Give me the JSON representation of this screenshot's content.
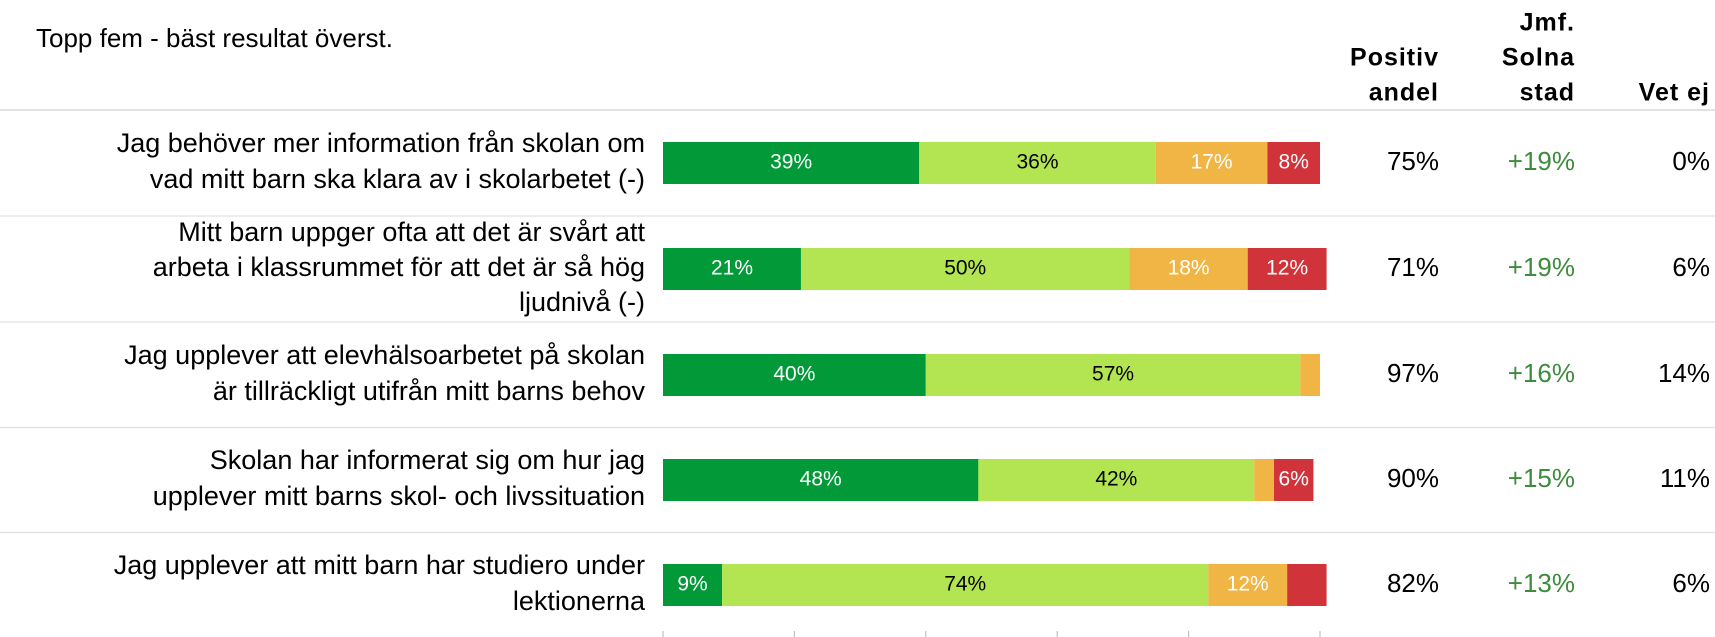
{
  "chart_data": {
    "type": "stacked-bar-horizontal",
    "title": "Topp fem - bäst resultat överst.",
    "categories": [
      [
        "Jag behöver mer information från skolan om",
        "vad mitt barn ska klara av i skolarbetet (-)"
      ],
      [
        "Mitt barn uppger ofta att det är svårt att",
        "arbeta i klassrummet för att det är så hög",
        "ljudnivå (-)"
      ],
      [
        "Jag upplever att elevhälsoarbetet på skolan",
        "är tillräckligt utifrån mitt barns behov"
      ],
      [
        "Skolan har informerat sig om hur jag",
        "upplever mitt barns skol- och livssituation"
      ],
      [
        "Jag upplever att mitt barn har studiero under",
        "lektionerna"
      ]
    ],
    "series": [
      {
        "color": "#029a39",
        "label_color": "#ffffff",
        "values": [
          39,
          21,
          40,
          48,
          9
        ],
        "value_labels": [
          "39%",
          "21%",
          "40%",
          "48%",
          "9%"
        ]
      },
      {
        "color": "#b3e451",
        "label_color": "#000000",
        "values": [
          36,
          50,
          57,
          42,
          74
        ],
        "value_labels": [
          "36%",
          "50%",
          "57%",
          "42%",
          "74%"
        ]
      },
      {
        "color": "#f0b544",
        "label_color": "#ffffff",
        "values": [
          17,
          18,
          3,
          3,
          12
        ],
        "value_labels": [
          "17%",
          "18%",
          null,
          null,
          "12%"
        ]
      },
      {
        "color": "#d1333a",
        "label_color": "#ffffff",
        "values": [
          8,
          12,
          0,
          6,
          6
        ],
        "value_labels": [
          "8%",
          "12%",
          null,
          "6%",
          null
        ]
      }
    ],
    "xlim": [
      0,
      100
    ],
    "xticks": [
      0,
      20,
      40,
      60,
      80,
      100
    ],
    "columns": [
      {
        "header": [
          "Positiv",
          "andel"
        ],
        "color": "#000000",
        "values": [
          "75%",
          "71%",
          "97%",
          "90%",
          "82%"
        ]
      },
      {
        "header": [
          "Jmf.",
          "Solna",
          "stad"
        ],
        "color": "#3d8b3d",
        "values": [
          "+19%",
          "+19%",
          "+16%",
          "+15%",
          "+13%"
        ]
      },
      {
        "header": [
          "Vet ej"
        ],
        "color": "#000000",
        "values": [
          "0%",
          "6%",
          "14%",
          "11%",
          "6%"
        ]
      }
    ]
  }
}
